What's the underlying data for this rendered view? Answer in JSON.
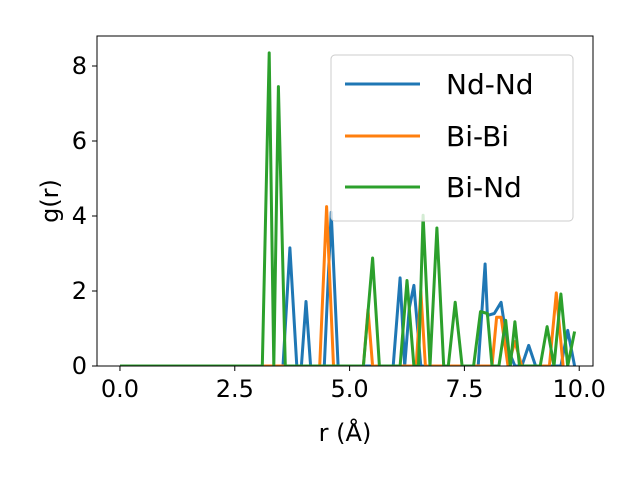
{
  "chart_data": {
    "type": "line",
    "title": "",
    "xlabel": "r (Å)",
    "ylabel": "g(r)",
    "xlim": [
      -0.5,
      10.3
    ],
    "ylim": [
      0,
      8.8
    ],
    "xticks": [
      0.0,
      2.5,
      5.0,
      7.5,
      10.0
    ],
    "xtick_labels": [
      "0.0",
      "2.5",
      "5.0",
      "7.5",
      "10.0"
    ],
    "yticks": [
      0,
      2,
      4,
      6,
      8
    ],
    "ytick_labels": [
      "0",
      "2",
      "4",
      "6",
      "8"
    ],
    "grid": false,
    "legend_position": "upper-right",
    "series": [
      {
        "name": "Nd-Nd",
        "color": "#1f77b4",
        "x": [
          0.0,
          3.55,
          3.7,
          3.85,
          3.95,
          4.05,
          4.15,
          4.45,
          4.6,
          4.75,
          5.3,
          5.5,
          5.95,
          6.1,
          6.2,
          6.3,
          6.4,
          6.55,
          7.8,
          7.95,
          8.0,
          8.15,
          8.3,
          8.45,
          8.6,
          8.75,
          8.9,
          9.05,
          9.6,
          9.75,
          9.9
        ],
        "y": [
          0,
          0,
          3.15,
          0,
          0,
          1.72,
          0,
          0,
          4.1,
          0,
          0,
          0,
          0,
          2.35,
          0,
          1.55,
          2.15,
          0,
          0,
          2.72,
          1.35,
          1.4,
          1.7,
          0.45,
          0,
          0,
          0.55,
          0,
          0,
          0.95,
          0
        ]
      },
      {
        "name": "Bi-Bi",
        "color": "#ff7f0e",
        "x": [
          0.0,
          4.35,
          4.5,
          4.65,
          5.3,
          5.4,
          5.5,
          6.45,
          6.55,
          6.65,
          8.1,
          8.2,
          8.3,
          8.45,
          8.6,
          8.75,
          9.35,
          9.5,
          9.65
        ],
        "y": [
          0,
          0,
          4.25,
          0,
          0,
          1.5,
          0,
          0,
          2.0,
          0,
          0,
          1.3,
          1.3,
          0,
          0.65,
          0,
          0,
          1.95,
          0
        ]
      },
      {
        "name": "Bi-Nd",
        "color": "#2ca02c",
        "x": [
          0.0,
          3.1,
          3.25,
          3.35,
          3.45,
          3.6,
          5.3,
          5.5,
          5.65,
          6.1,
          6.25,
          6.4,
          6.5,
          6.6,
          6.75,
          6.9,
          7.05,
          7.15,
          7.3,
          7.45,
          7.7,
          7.85,
          8.0,
          8.1,
          8.25,
          8.4,
          8.5,
          8.6,
          8.7,
          8.85,
          9.15,
          9.3,
          9.45,
          9.6,
          9.75,
          9.9
        ],
        "y": [
          0,
          0,
          8.35,
          0,
          7.45,
          0,
          0,
          2.88,
          0,
          0,
          2.28,
          0,
          0,
          4.02,
          0,
          3.68,
          0,
          0,
          1.7,
          0,
          0,
          1.45,
          1.4,
          0,
          0,
          1.22,
          0,
          1.18,
          0,
          0,
          0,
          1.05,
          0,
          1.92,
          0,
          0.92
        ]
      }
    ]
  }
}
